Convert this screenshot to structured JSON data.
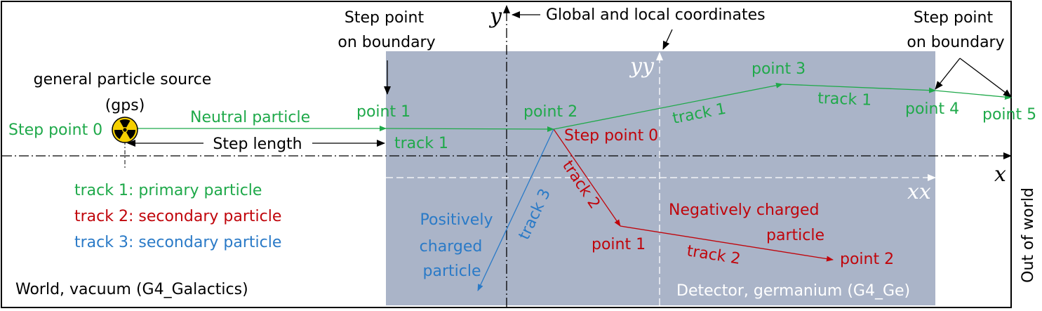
{
  "colors": {
    "primary": "#1fa94a",
    "secondary_negative": "#c0050b",
    "secondary_positive": "#2a7ac7",
    "detector_fill": "#aab4c8",
    "border": "#000000"
  },
  "icons": {
    "source": "radiation-icon"
  },
  "labels": {
    "step_point_boundary_left": [
      "Step point",
      "on boundary"
    ],
    "step_point_boundary_right": [
      "Step point",
      "on boundary"
    ],
    "global_local": "Global and local coordinates",
    "axis_y": "y",
    "axis_x": "x",
    "axis_yy": "yy",
    "axis_xx": "xx",
    "gps": [
      "general particle source",
      "(gps)"
    ],
    "step_point_0": "Step point 0",
    "neutral_particle": "Neutral particle",
    "step_length": "Step length",
    "point_1": "point 1",
    "point_2": "point 2",
    "point_3": "point 3",
    "point_4": "point 4",
    "point_5": "point 5",
    "track_1": "track 1",
    "step_point_0_red": "Step point 0",
    "track_2": "track 2",
    "track_3": "track 3",
    "point_1_red": "point 1",
    "point_2_red": "point 2",
    "negatively_charged": [
      "Negatively charged",
      "particle"
    ],
    "positively_charged": [
      "Positively",
      "charged",
      "particle"
    ],
    "out_of_world": "Out of world",
    "world": "World, vacuum (G4_Galactics)",
    "detector": "Detector, germanium (G4_Ge)"
  },
  "legend": [
    {
      "text": "track 1: primary particle",
      "color": "#1fa94a"
    },
    {
      "text": "track 2: secondary particle",
      "color": "#c0050b"
    },
    {
      "text": "track 3: secondary particle",
      "color": "#2a7ac7"
    }
  ]
}
